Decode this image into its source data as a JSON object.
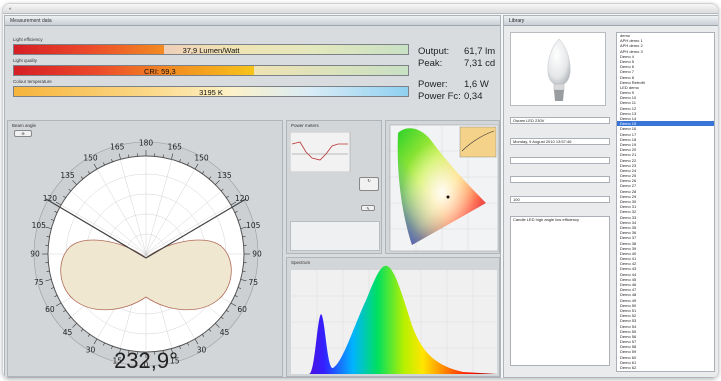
{
  "menubar": {
    "items": [
      "«"
    ]
  },
  "left_window": {
    "title": "Measurement data",
    "bars": [
      {
        "label": "Light efficiency",
        "value": "37,9 Lumen/Watt",
        "fill": 0.3
      },
      {
        "label": "Light quality",
        "value": "CRI: 59,3",
        "fill": 0.6
      },
      {
        "label": "Colour temperature",
        "value": "3195 K",
        "fill": 1.0
      }
    ],
    "readouts": [
      {
        "label": "Output:",
        "value": "61,7 lm"
      },
      {
        "label": "Peak:",
        "value": "7,31 cd"
      },
      {
        "label": "Power:",
        "value": "1,6 W"
      },
      {
        "label": "Power Fc:",
        "value": "0,34"
      }
    ],
    "beam_panel": {
      "title": "Beam angle",
      "angle": "232,9°",
      "angle_value": 232.9,
      "labels_top": [
        "180",
        "165",
        "165",
        "150",
        "150",
        "135",
        "135",
        "120",
        "120",
        "105",
        "105",
        "90",
        "90",
        "75",
        "75",
        "60",
        "60",
        "45",
        "45",
        "30",
        "30",
        "15",
        "15",
        "0"
      ]
    },
    "power_panel": {
      "title": "Power meters"
    },
    "spectrum_panel": {
      "title": "Spectrum"
    }
  },
  "right_window": {
    "title": "Library",
    "field_values": [
      "Osram LED 230V",
      "Monday, 9 August 2010 13:57:46",
      "",
      "",
      "100",
      "Candle LED high angle low efficiency"
    ],
    "list_items": [
      "demo",
      "APH demo 1",
      "APH demo 2",
      "APH demo 3",
      "Demo 4",
      "Demo 5",
      "Demo 6",
      "Demo 7",
      "Demo 8",
      "Demo Retrofit",
      "LED demo",
      "Demo 9",
      "Demo 10",
      "Demo 11",
      "Demo 12",
      "Demo 13",
      "Demo 14",
      "Demo 15",
      "Demo 16",
      "Demo 17",
      "Demo 18",
      "Demo 19",
      "Demo 20",
      "Demo 21",
      "Demo 22",
      "Demo 23",
      "Demo 24",
      "Demo 25",
      "Demo 26",
      "Demo 27",
      "Demo 28",
      "Demo 29",
      "Demo 30",
      "Demo 31",
      "Demo 32",
      "Demo 33",
      "Demo 34",
      "Demo 35",
      "Demo 36",
      "Demo 37",
      "Demo 38",
      "Demo 39",
      "Demo 40",
      "Demo 41",
      "Demo 42",
      "Demo 43",
      "Demo 44",
      "Demo 45",
      "Demo 46",
      "Demo 47",
      "Demo 48",
      "Demo 49",
      "Demo 50",
      "Demo 51",
      "Demo 52",
      "Demo 53",
      "Demo 54",
      "Demo 55",
      "Demo 56",
      "Demo 57",
      "Demo 58",
      "Demo 59",
      "Demo 60",
      "Demo 61",
      "Demo 62",
      "Demo 63",
      "Demo 64"
    ],
    "selected_index": 17
  },
  "colors": {
    "accent": "#3875d7",
    "panel": "#d3d6d9"
  }
}
